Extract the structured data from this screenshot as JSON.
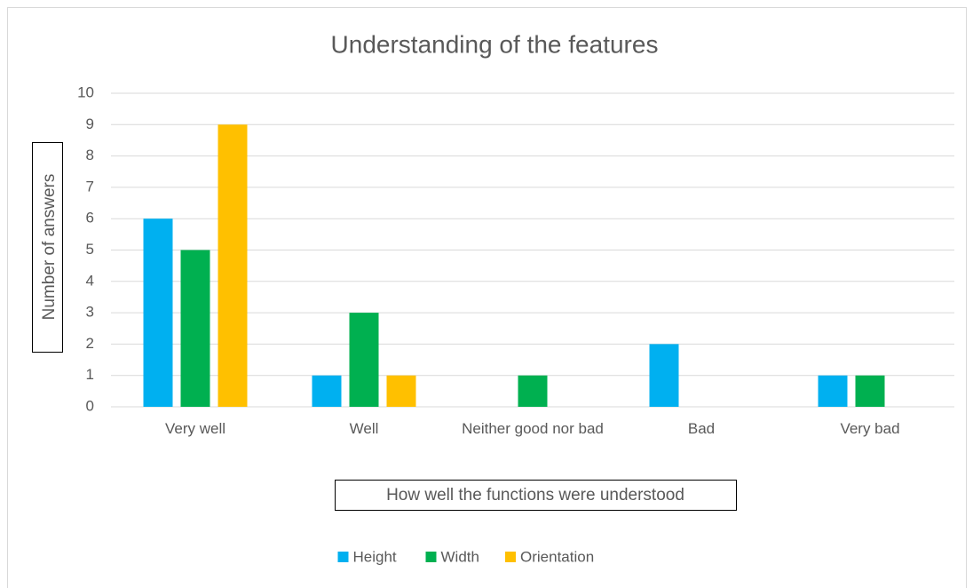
{
  "chart_data": {
    "type": "bar",
    "title": "Understanding of the features",
    "x_label": "How well the functions were understood",
    "y_label": "Number of answers",
    "categories": [
      "Very well",
      "Well",
      "Neither good nor bad",
      "Bad",
      "Very bad"
    ],
    "series": [
      {
        "name": "Height",
        "color": "#00b0f0",
        "values": [
          6,
          1,
          0,
          2,
          1
        ]
      },
      {
        "name": "Width",
        "color": "#00b050",
        "values": [
          5,
          3,
          1,
          0,
          1
        ]
      },
      {
        "name": "Orientation",
        "color": "#ffc000",
        "values": [
          9,
          1,
          0,
          0,
          0
        ]
      }
    ],
    "ylim": [
      0,
      10
    ],
    "yticks": [
      0,
      1,
      2,
      3,
      4,
      5,
      6,
      7,
      8,
      9,
      10
    ],
    "grid": true,
    "legend": "bottom"
  }
}
